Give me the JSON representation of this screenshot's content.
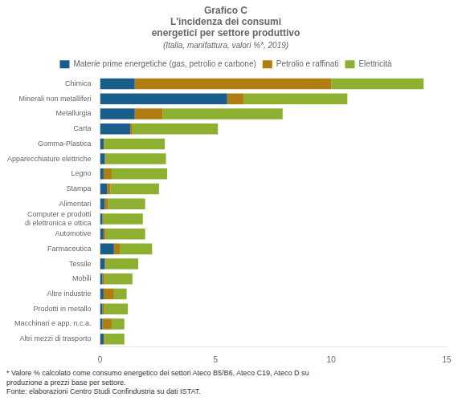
{
  "chart_data": {
    "type": "bar",
    "orientation": "horizontal",
    "stacked": true,
    "title": [
      "Grafico C",
      "L'incidenza dei consumi",
      "energetici per settore produttivo"
    ],
    "subtitle": "(Italia, manifattura, valori %*, 2019)",
    "categories": [
      "Chimica",
      "Minerali non metalliferi",
      "Metallurgia",
      "Carta",
      "Gomma-Plastica",
      "Apparecchiature elettriche",
      "Legno",
      "Stampa",
      "Alimentari",
      "Computer e prodotti\ndi elettronica e ottica",
      "Automotive",
      "Farmaceutica",
      "Tessile",
      "Mobili",
      "Altre industrie",
      "Prodotti in metallo",
      "Macchinari e app. n.c.a.",
      "Altri mezzi di trasporto"
    ],
    "series": [
      {
        "name": "Materie prime energetiche (gas, petrolio e carbone)",
        "color": "#1a5c8a",
        "values": [
          1.5,
          5.5,
          1.5,
          1.3,
          0.15,
          0.2,
          0.15,
          0.3,
          0.2,
          0.1,
          0.15,
          0.6,
          0.2,
          0.1,
          0.15,
          0.1,
          0.1,
          0.15
        ]
      },
      {
        "name": "Petrolio e raffinati",
        "color": "#b07d10",
        "values": [
          8.5,
          0.7,
          1.2,
          0.1,
          0.05,
          0.05,
          0.35,
          0.15,
          0.15,
          0.05,
          0.1,
          0.25,
          0.05,
          0.1,
          0.45,
          0.1,
          0.4,
          0.05
        ]
      },
      {
        "name": "Elettricità",
        "color": "#8db030",
        "values": [
          4.0,
          4.5,
          5.2,
          3.7,
          2.6,
          2.6,
          2.4,
          2.1,
          1.6,
          1.7,
          1.7,
          1.4,
          1.4,
          1.2,
          0.55,
          1.0,
          0.55,
          0.85
        ]
      }
    ],
    "xlim": [
      0,
      15
    ],
    "xticks": [
      0,
      5,
      10,
      15
    ],
    "grid": false,
    "legend": "top",
    "annotations": [
      "* Valore % calcolato come consumo energetico dei settori Ateco B5/B6, Ateco C19, Ateco D su\nproduzione a prezzi base per settore.\nFonte: elaborazioni Centro Studi Confindustria su dati ISTAT."
    ]
  }
}
